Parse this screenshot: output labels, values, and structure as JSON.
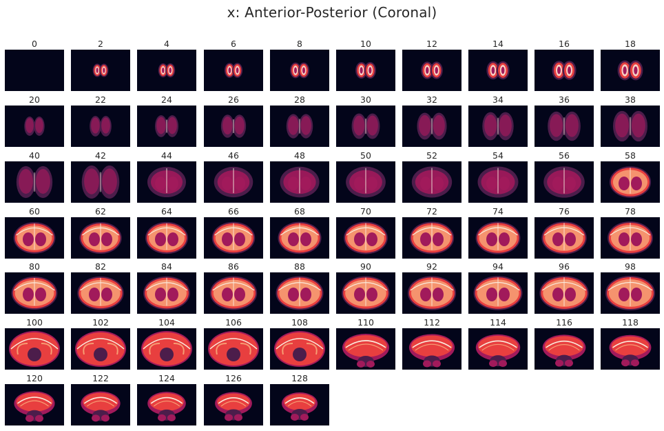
{
  "title": "x: Anterior-Posterior (Coronal)",
  "colors": {
    "background": "#03051a",
    "colormap": [
      "#03051a",
      "#4c1d4b",
      "#a11a5b",
      "#e83f3f",
      "#f69c73",
      "#faebdd"
    ]
  },
  "slices": [
    {
      "label": "0"
    },
    {
      "label": "2"
    },
    {
      "label": "4"
    },
    {
      "label": "6"
    },
    {
      "label": "8"
    },
    {
      "label": "10"
    },
    {
      "label": "12"
    },
    {
      "label": "14"
    },
    {
      "label": "16"
    },
    {
      "label": "18"
    },
    {
      "label": "20"
    },
    {
      "label": "22"
    },
    {
      "label": "24"
    },
    {
      "label": "26"
    },
    {
      "label": "28"
    },
    {
      "label": "30"
    },
    {
      "label": "32"
    },
    {
      "label": "34"
    },
    {
      "label": "36"
    },
    {
      "label": "38"
    },
    {
      "label": "40"
    },
    {
      "label": "42"
    },
    {
      "label": "44"
    },
    {
      "label": "46"
    },
    {
      "label": "48"
    },
    {
      "label": "50"
    },
    {
      "label": "52"
    },
    {
      "label": "54"
    },
    {
      "label": "56"
    },
    {
      "label": "58"
    },
    {
      "label": "60"
    },
    {
      "label": "62"
    },
    {
      "label": "64"
    },
    {
      "label": "66"
    },
    {
      "label": "68"
    },
    {
      "label": "70"
    },
    {
      "label": "72"
    },
    {
      "label": "74"
    },
    {
      "label": "76"
    },
    {
      "label": "78"
    },
    {
      "label": "80"
    },
    {
      "label": "82"
    },
    {
      "label": "84"
    },
    {
      "label": "86"
    },
    {
      "label": "88"
    },
    {
      "label": "90"
    },
    {
      "label": "92"
    },
    {
      "label": "94"
    },
    {
      "label": "96"
    },
    {
      "label": "98"
    },
    {
      "label": "100"
    },
    {
      "label": "102"
    },
    {
      "label": "104"
    },
    {
      "label": "106"
    },
    {
      "label": "108"
    },
    {
      "label": "110"
    },
    {
      "label": "112"
    },
    {
      "label": "114"
    },
    {
      "label": "116"
    },
    {
      "label": "118"
    },
    {
      "label": "120"
    },
    {
      "label": "122"
    },
    {
      "label": "124"
    },
    {
      "label": "126"
    },
    {
      "label": "128"
    }
  ]
}
